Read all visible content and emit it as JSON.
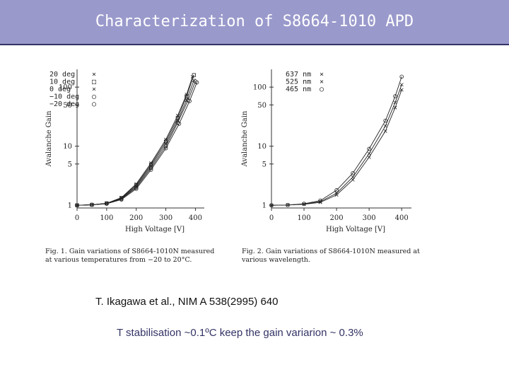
{
  "title": "Characterization of S8664-1010 APD",
  "chart_data": [
    {
      "type": "line",
      "xlabel": "High Voltage [V]",
      "ylabel": "Avalanche Gain",
      "xlim": [
        0,
        430
      ],
      "ylim": [
        0.9,
        200
      ],
      "yscale": "log",
      "xticks": [
        "0",
        "100",
        "200",
        "300",
        "400"
      ],
      "yticks": [
        "1",
        "5",
        "10",
        "50",
        "100"
      ],
      "legend_position": "top-left",
      "caption": "Fig. 1. Gain variations of S8664-1010N measured at various temperatures from −20 to 20°C.",
      "series": [
        {
          "name": "20 deg",
          "marker": "×",
          "x": [
            0,
            50,
            100,
            150,
            200,
            250,
            300,
            340,
            370,
            390
          ],
          "y": [
            1.0,
            1.02,
            1.08,
            1.35,
            2.3,
            5.2,
            13,
            33,
            75,
            150
          ]
        },
        {
          "name": "10 deg",
          "marker": "□",
          "x": [
            0,
            50,
            100,
            150,
            200,
            250,
            300,
            340,
            370,
            395
          ],
          "y": [
            1.0,
            1.02,
            1.08,
            1.33,
            2.2,
            4.9,
            12,
            30,
            70,
            160
          ]
        },
        {
          "name": "0 deg",
          "marker": "×",
          "x": [
            0,
            50,
            100,
            150,
            200,
            250,
            300,
            340,
            370,
            395
          ],
          "y": [
            1.0,
            1.02,
            1.07,
            1.3,
            2.1,
            4.6,
            11,
            27,
            60,
            130
          ]
        },
        {
          "name": "−10 deg",
          "marker": "○",
          "x": [
            0,
            50,
            100,
            150,
            200,
            250,
            300,
            340,
            375,
            400
          ],
          "y": [
            1.0,
            1.02,
            1.07,
            1.28,
            2.0,
            4.3,
            10,
            25,
            60,
            125
          ]
        },
        {
          "name": "−20 deg",
          "marker": "○",
          "x": [
            0,
            50,
            100,
            150,
            200,
            250,
            300,
            345,
            380,
            405
          ],
          "y": [
            1.0,
            1.02,
            1.06,
            1.25,
            1.9,
            4.0,
            9.2,
            24,
            58,
            120
          ]
        }
      ]
    },
    {
      "type": "line",
      "xlabel": "High Voltage [V]",
      "ylabel": "Avalanche Gain",
      "xlim": [
        0,
        430
      ],
      "ylim": [
        0.9,
        200
      ],
      "yscale": "log",
      "xticks": [
        "0",
        "100",
        "200",
        "300",
        "400"
      ],
      "yticks": [
        "1",
        "5",
        "10",
        "50",
        "100"
      ],
      "legend_position": "top-right",
      "caption": "Fig. 2. Gain variations of S8664-1010N measured at various wavelength.",
      "series": [
        {
          "name": "637 nm",
          "marker": "×",
          "x": [
            0,
            50,
            100,
            150,
            200,
            250,
            300,
            350,
            380,
            400
          ],
          "y": [
            1.0,
            1.01,
            1.04,
            1.12,
            1.5,
            2.7,
            6.5,
            18,
            45,
            90
          ]
        },
        {
          "name": "525 nm",
          "marker": "×",
          "x": [
            0,
            50,
            100,
            150,
            200,
            250,
            300,
            350,
            380,
            400
          ],
          "y": [
            1.0,
            1.01,
            1.05,
            1.15,
            1.6,
            3.0,
            7.5,
            22,
            55,
            110
          ]
        },
        {
          "name": "465 nm",
          "marker": "○",
          "x": [
            0,
            50,
            100,
            150,
            200,
            250,
            300,
            350,
            380,
            400
          ],
          "y": [
            1.0,
            1.01,
            1.06,
            1.2,
            1.8,
            3.5,
            9,
            27,
            70,
            150
          ]
        }
      ]
    }
  ],
  "reference": "T. Ikagawa et al., NIM A 538(2995) 640",
  "note": "T stabilisation ~0.1ºC keep the gain variarion ~ 0.3%"
}
